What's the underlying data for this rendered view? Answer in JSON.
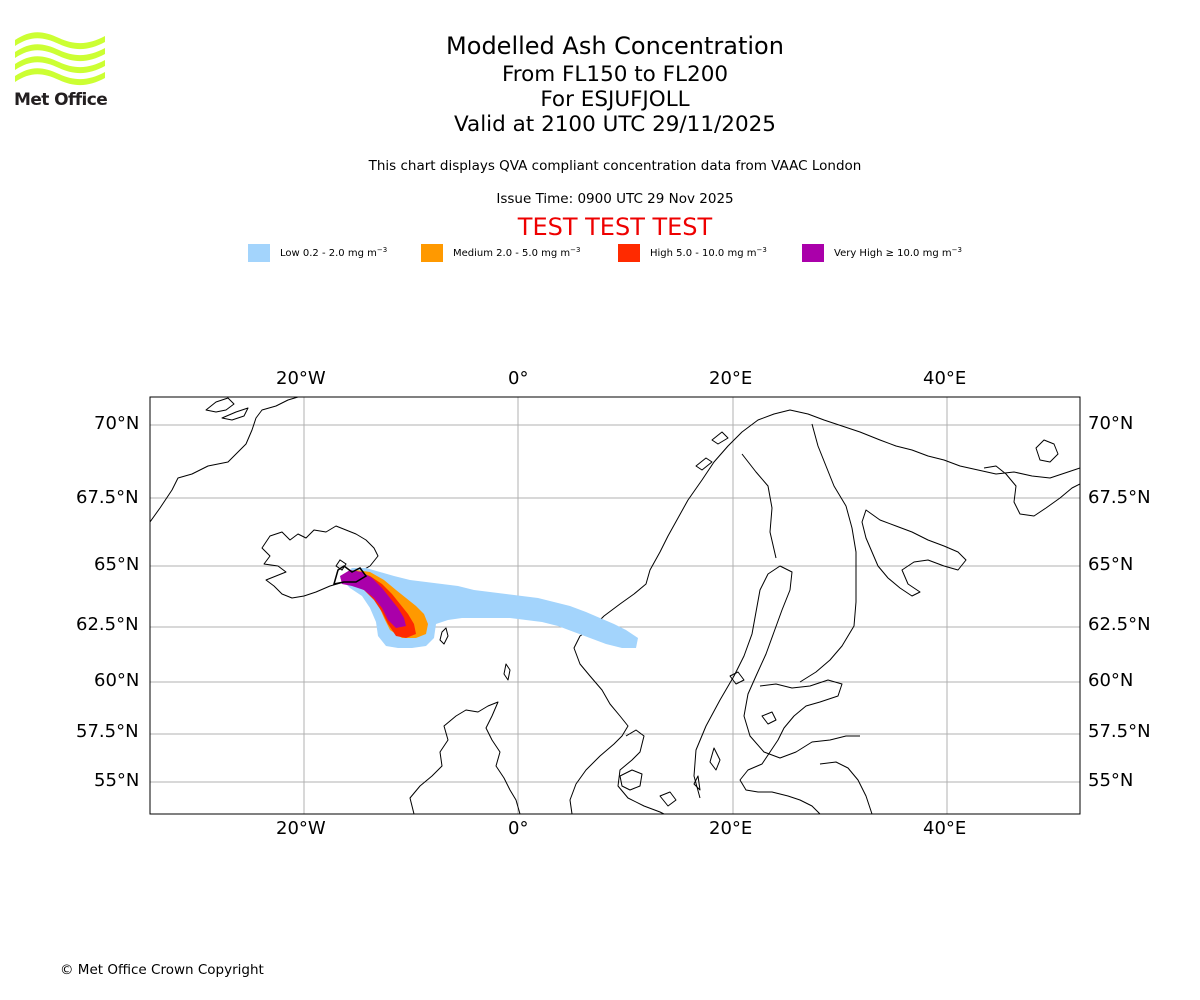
{
  "logo": {
    "text": "Met Office",
    "color": "#ccff33"
  },
  "title": {
    "line1": "Modelled Ash Concentration",
    "line2": "From FL150 to FL200",
    "line3": "For ESJUFJOLL",
    "line4": "Valid at 2100 UTC 29/11/2025"
  },
  "subtitle": "This chart displays QVA compliant concentration data from VAAC London",
  "issue_time": "Issue Time: 0900 UTC 29 Nov 2025",
  "test_banner": "TEST TEST TEST",
  "legend": [
    {
      "label": "Low 0.2 - 2.0 mg m",
      "exp": "−3",
      "color": "#a3d4fc"
    },
    {
      "label": "Medium 2.0 - 5.0 mg m",
      "exp": "−3",
      "color": "#ff9900"
    },
    {
      "label": "High 5.0 - 10.0 mg m",
      "exp": "−3",
      "color": "#ff2a00"
    },
    {
      "label": "Very High ≥ 10.0 mg m",
      "exp": "−3",
      "color": "#aa00aa"
    }
  ],
  "map": {
    "lon_ticks": [
      "20°W",
      "0°",
      "20°E",
      "40°E"
    ],
    "lat_ticks": [
      "70°N",
      "67.5°N",
      "65°N",
      "62.5°N",
      "60°N",
      "57.5°N",
      "55°N"
    ]
  },
  "copyright": "© Met Office Crown Copyright"
}
